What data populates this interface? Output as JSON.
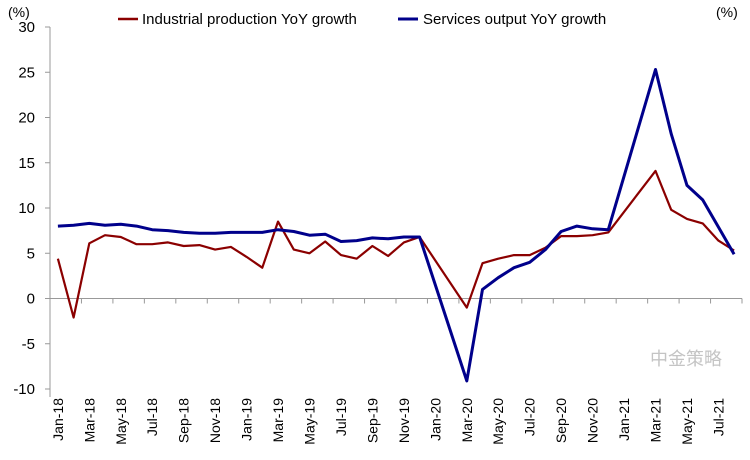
{
  "chart_data": {
    "type": "line",
    "title": "",
    "y_unit_left": "(%)",
    "y_unit_right": "(%)",
    "ylim": [
      -10,
      30
    ],
    "yticks": [
      -10,
      -5,
      0,
      5,
      10,
      15,
      20,
      25,
      30
    ],
    "grid": false,
    "legend_position": "top",
    "x": [
      "Jan-18",
      "Feb-18",
      "Mar-18",
      "Apr-18",
      "May-18",
      "Jun-18",
      "Jul-18",
      "Aug-18",
      "Sep-18",
      "Oct-18",
      "Nov-18",
      "Dec-18",
      "Jan-19",
      "Feb-19",
      "Mar-19",
      "Apr-19",
      "May-19",
      "Jun-19",
      "Jul-19",
      "Aug-19",
      "Sep-19",
      "Oct-19",
      "Nov-19",
      "Dec-19",
      "Jan-20",
      "Feb-20",
      "Mar-20",
      "Apr-20",
      "May-20",
      "Jun-20",
      "Jul-20",
      "Aug-20",
      "Sep-20",
      "Oct-20",
      "Nov-20",
      "Dec-20",
      "Jan-21",
      "Feb-21",
      "Mar-21",
      "Apr-21",
      "May-21",
      "Jun-21",
      "Jul-21",
      "Aug-21"
    ],
    "xtick_labels": [
      "Jan-18",
      "Mar-18",
      "May-18",
      "Jul-18",
      "Sep-18",
      "Nov-18",
      "Jan-19",
      "Mar-19",
      "May-19",
      "Jul-19",
      "Sep-19",
      "Nov-19",
      "Jan-20",
      "Mar-20",
      "May-20",
      "Jul-20",
      "Sep-20",
      "Nov-20",
      "Jan-21",
      "Mar-21",
      "May-21",
      "Jul-21"
    ],
    "series": [
      {
        "name": "Industrial production YoY growth",
        "color": "#8B0000",
        "values": [
          4.4,
          -2.1,
          6.1,
          7.0,
          6.8,
          6.0,
          6.0,
          6.2,
          5.8,
          5.9,
          5.4,
          5.7,
          4.6,
          3.4,
          8.5,
          5.4,
          5.0,
          6.3,
          4.8,
          4.4,
          5.8,
          4.7,
          6.2,
          6.8,
          null,
          null,
          -1.0,
          3.9,
          4.4,
          4.8,
          4.8,
          5.6,
          6.9,
          6.9,
          7.0,
          7.3,
          null,
          null,
          14.1,
          9.8,
          8.8,
          8.3,
          6.4,
          5.3
        ]
      },
      {
        "name": "Services output YoY growth",
        "color": "#00008B",
        "values": [
          8.0,
          8.1,
          8.3,
          8.1,
          8.2,
          8.0,
          7.6,
          7.5,
          7.3,
          7.2,
          7.2,
          7.3,
          7.3,
          7.3,
          7.6,
          7.4,
          7.0,
          7.1,
          6.3,
          6.4,
          6.7,
          6.6,
          6.8,
          6.8,
          null,
          null,
          -9.1,
          1.0,
          2.3,
          3.4,
          4.0,
          5.4,
          7.4,
          8.0,
          7.7,
          7.6,
          null,
          null,
          25.3,
          18.2,
          12.5,
          10.9,
          7.9,
          4.9
        ]
      }
    ]
  },
  "watermark": "中金策略"
}
